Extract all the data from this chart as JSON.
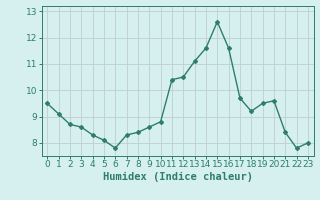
{
  "x": [
    0,
    1,
    2,
    3,
    4,
    5,
    6,
    7,
    8,
    9,
    10,
    11,
    12,
    13,
    14,
    15,
    16,
    17,
    18,
    19,
    20,
    21,
    22,
    23
  ],
  "y": [
    9.5,
    9.1,
    8.7,
    8.6,
    8.3,
    8.1,
    7.8,
    8.3,
    8.4,
    8.6,
    8.8,
    10.4,
    10.5,
    11.1,
    11.6,
    12.6,
    11.6,
    9.7,
    9.2,
    9.5,
    9.6,
    8.4,
    7.8,
    8.0
  ],
  "xlabel": "Humidex (Indice chaleur)",
  "ylim": [
    7.5,
    13.2
  ],
  "xlim": [
    -0.5,
    23.5
  ],
  "yticks": [
    8,
    9,
    10,
    11,
    12,
    13
  ],
  "line_color": "#2e7d6e",
  "marker": "D",
  "marker_size": 2.0,
  "bg_color": "#d6f0ef",
  "grid_color": "#c0cece",
  "axis_color": "#2e7d6e",
  "tick_color": "#2e7d6e",
  "label_color": "#2e7d6e",
  "xlabel_fontsize": 7.5,
  "tick_fontsize": 6.5,
  "linewidth": 1.0
}
